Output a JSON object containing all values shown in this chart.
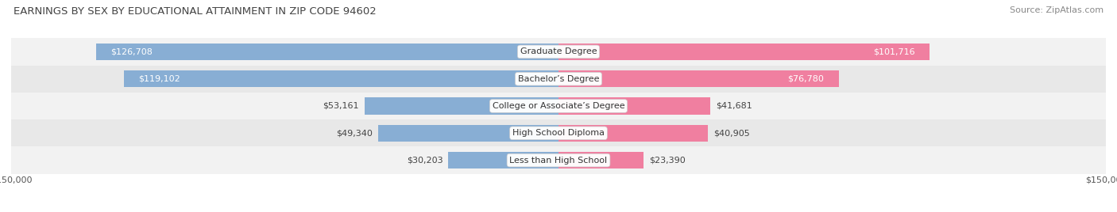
{
  "title": "EARNINGS BY SEX BY EDUCATIONAL ATTAINMENT IN ZIP CODE 94602",
  "source": "Source: ZipAtlas.com",
  "categories": [
    "Less than High School",
    "High School Diploma",
    "College or Associate’s Degree",
    "Bachelor’s Degree",
    "Graduate Degree"
  ],
  "male_values": [
    30203,
    49340,
    53161,
    119102,
    126708
  ],
  "female_values": [
    23390,
    40905,
    41681,
    76780,
    101716
  ],
  "male_color": "#88aed4",
  "female_color": "#f07fa0",
  "row_bg_light": "#f2f2f2",
  "row_bg_dark": "#e8e8e8",
  "xlim": 150000,
  "bar_height": 0.62,
  "label_fontsize": 8.0,
  "title_fontsize": 9.5,
  "source_fontsize": 8.0,
  "category_label_fontsize": 8.0,
  "inside_label_threshold": 65000
}
